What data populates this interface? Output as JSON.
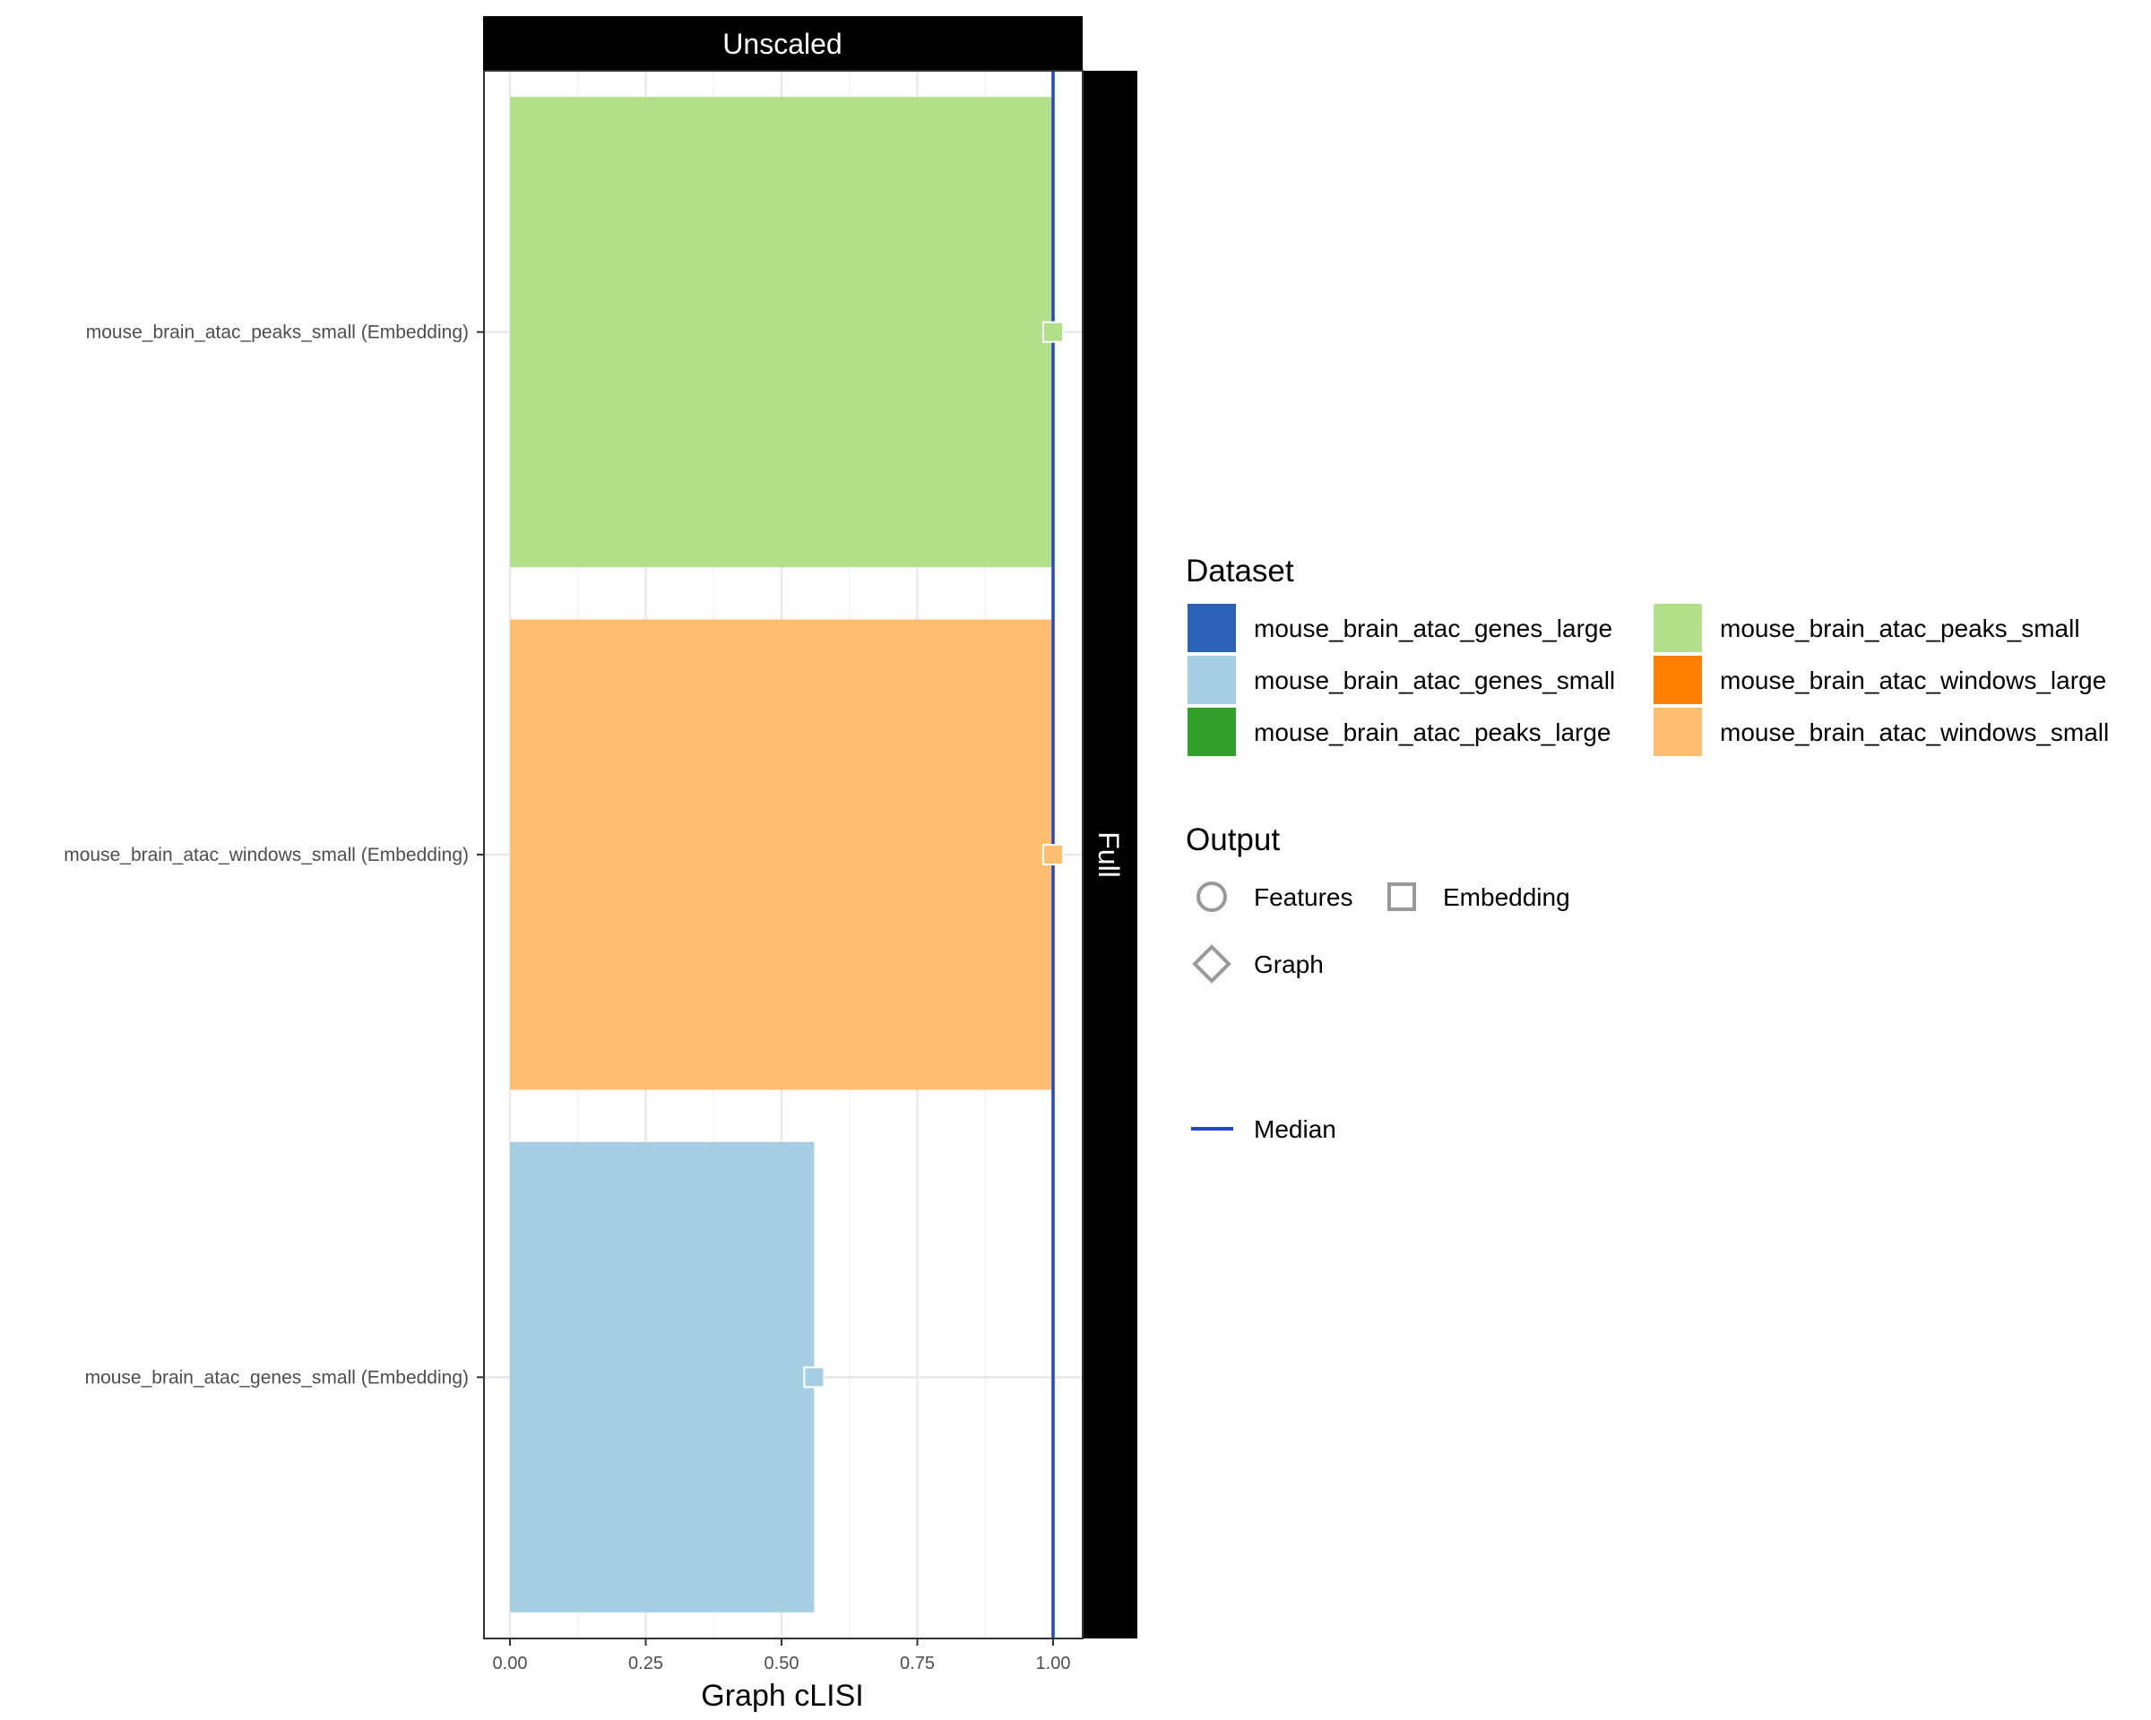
{
  "chart_data": {
    "type": "bar",
    "facet_top": "Unscaled",
    "facet_right": "Full",
    "xlabel": "Graph cLISI",
    "ylabel": "",
    "xlim": [
      0,
      1.05
    ],
    "x_ticks": [
      "0.00",
      "0.25",
      "0.50",
      "0.75",
      "1.00"
    ],
    "median": 1.0,
    "categories": [
      "mouse_brain_atac_peaks_small (Embedding)",
      "mouse_brain_atac_windows_small (Embedding)",
      "mouse_brain_atac_genes_small (Embedding)"
    ],
    "values": [
      1.0,
      1.0,
      0.56
    ],
    "bar_colors": [
      "#b2df8a",
      "#fdbf6f",
      "#a6cee3"
    ],
    "marker_shape": "square",
    "grid": true,
    "legend_position": "right",
    "legend": {
      "dataset_title": "Dataset",
      "datasets": [
        {
          "name": "mouse_brain_atac_genes_large",
          "color": "#2b62b8"
        },
        {
          "name": "mouse_brain_atac_peaks_small",
          "color": "#b2df8a"
        },
        {
          "name": "mouse_brain_atac_genes_small",
          "color": "#a6cee3"
        },
        {
          "name": "mouse_brain_atac_windows_large",
          "color": "#ff7f00"
        },
        {
          "name": "mouse_brain_atac_peaks_large",
          "color": "#33a02c"
        },
        {
          "name": "mouse_brain_atac_windows_small",
          "color": "#fdbf6f"
        }
      ],
      "output_title": "Output",
      "outputs": [
        {
          "name": "Features",
          "shape": "circle"
        },
        {
          "name": "Embedding",
          "shape": "square"
        },
        {
          "name": "Graph",
          "shape": "diamond"
        }
      ],
      "median_label": "Median",
      "median_color": "#2447c9"
    }
  }
}
